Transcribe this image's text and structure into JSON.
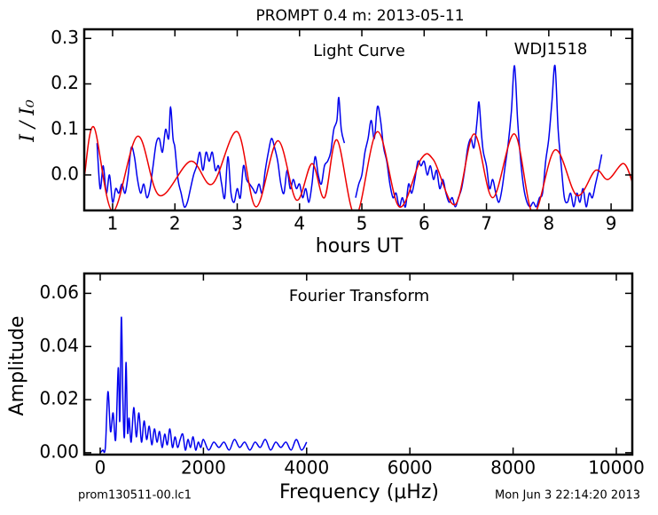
{
  "chart_data": [
    {
      "type": "line",
      "title": "PROMPT 0.4 m:  2013-05-11",
      "annotations": [
        "Light Curve",
        "WDJ1518"
      ],
      "xlabel": "hours UT",
      "ylabel": "I / I₀",
      "xlim": [
        0.545,
        9.34
      ],
      "ylim": [
        -0.078,
        0.32
      ],
      "xticks": [
        1,
        2,
        3,
        4,
        5,
        6,
        7,
        8,
        9
      ],
      "yticks": [
        {
          "value": 0,
          "label": "0.0"
        },
        0.1,
        0.2,
        0.3
      ],
      "series": [
        {
          "color": "#0000ee",
          "x": [
            0.75,
            0.8,
            0.85,
            0.9,
            0.95,
            1.0,
            1.05,
            1.1,
            1.15,
            1.2,
            1.25,
            1.3,
            1.35,
            1.4,
            1.45,
            1.5,
            1.55,
            1.6,
            1.65,
            1.7,
            1.75,
            1.8,
            1.85,
            1.9,
            1.93,
            1.97,
            2.0,
            2.05,
            2.1,
            2.15,
            2.2,
            2.25,
            2.3,
            2.35,
            2.4,
            2.45,
            2.5,
            2.55,
            2.6,
            2.65,
            2.7,
            2.75,
            2.8,
            2.85,
            2.9,
            2.95,
            3.0,
            3.05,
            3.1,
            3.15,
            3.2,
            3.25,
            3.3,
            3.35,
            3.4,
            3.45,
            3.5,
            3.55,
            3.6,
            3.65,
            3.7,
            3.75,
            3.8,
            3.85,
            3.9,
            3.95,
            4.0,
            4.05,
            4.1,
            4.15,
            4.2,
            4.25,
            4.3,
            4.35,
            4.4,
            4.45,
            4.5,
            4.55,
            4.6,
            4.63,
            4.67,
            4.72,
            4.8,
            4.9,
            4.95,
            5.0,
            5.05,
            5.1,
            5.15,
            5.2,
            5.25,
            5.3,
            5.35,
            5.4,
            5.45,
            5.5,
            5.55,
            5.6,
            5.65,
            5.7,
            5.75,
            5.8,
            5.85,
            5.9,
            5.95,
            6.0,
            6.05,
            6.1,
            6.15,
            6.2,
            6.25,
            6.3,
            6.35,
            6.4,
            6.45,
            6.5,
            6.55,
            6.6,
            6.65,
            6.7,
            6.75,
            6.8,
            6.85,
            6.88,
            6.92,
            6.95,
            7.0,
            7.05,
            7.1,
            7.15,
            7.2,
            7.25,
            7.3,
            7.35,
            7.4,
            7.45,
            7.5,
            7.55,
            7.6,
            7.65,
            7.7,
            7.75,
            7.8,
            7.85,
            7.9,
            7.95,
            8.0,
            8.05,
            8.1,
            8.15,
            8.2,
            8.25,
            8.3,
            8.35,
            8.4,
            8.45,
            8.5,
            8.55,
            8.6,
            8.65,
            8.7,
            8.75,
            8.8,
            8.85
          ],
          "values": [
            0.07,
            -0.03,
            0.02,
            -0.04,
            0.0,
            -0.06,
            -0.03,
            -0.04,
            -0.02,
            -0.04,
            0.0,
            0.06,
            0.04,
            -0.01,
            -0.04,
            -0.02,
            -0.05,
            -0.03,
            0.02,
            0.07,
            0.08,
            0.05,
            0.1,
            0.08,
            0.15,
            0.08,
            0.06,
            -0.01,
            -0.04,
            -0.07,
            -0.06,
            -0.03,
            0.0,
            0.02,
            0.05,
            0.01,
            0.05,
            0.03,
            0.05,
            0.01,
            0.02,
            -0.02,
            -0.05,
            0.04,
            -0.04,
            -0.06,
            -0.03,
            -0.05,
            0.02,
            -0.01,
            -0.02,
            -0.03,
            -0.04,
            -0.02,
            -0.04,
            0.01,
            0.05,
            0.08,
            0.06,
            0.03,
            -0.02,
            -0.04,
            0.01,
            -0.03,
            -0.01,
            -0.03,
            -0.02,
            -0.05,
            -0.03,
            -0.06,
            -0.02,
            0.04,
            0.0,
            -0.02,
            0.02,
            0.03,
            0.05,
            0.1,
            0.12,
            0.17,
            0.1,
            0.07,
            null,
            -0.05,
            -0.02,
            0.0,
            0.05,
            0.08,
            0.12,
            0.08,
            0.15,
            0.12,
            0.06,
            0.03,
            -0.02,
            -0.05,
            -0.04,
            -0.07,
            -0.05,
            -0.07,
            -0.02,
            -0.04,
            -0.01,
            0.03,
            0.02,
            0.03,
            0.0,
            0.02,
            -0.01,
            0.01,
            -0.03,
            -0.01,
            -0.04,
            -0.06,
            -0.05,
            -0.07,
            -0.05,
            -0.03,
            0.01,
            0.06,
            0.08,
            0.06,
            0.12,
            0.16,
            0.09,
            0.05,
            0.02,
            -0.03,
            -0.01,
            -0.04,
            -0.06,
            -0.03,
            0.02,
            0.07,
            0.14,
            0.24,
            0.12,
            0.03,
            -0.03,
            -0.06,
            -0.07,
            -0.06,
            -0.07,
            -0.05,
            -0.04,
            0.03,
            0.08,
            0.16,
            0.24,
            0.1,
            0.02,
            -0.05,
            -0.06,
            -0.04,
            -0.07,
            -0.04,
            -0.06,
            -0.03,
            -0.07,
            -0.04,
            -0.05,
            -0.02,
            0.01,
            0.045
          ]
        },
        {
          "color": "#ee0000",
          "x": [
            0.55,
            0.7,
            1.0,
            1.4,
            1.75,
            2.25,
            2.6,
            3.0,
            3.3,
            3.65,
            3.95,
            4.2,
            4.4,
            4.6,
            4.9,
            5.25,
            5.6,
            5.95,
            6.15,
            6.5,
            6.8,
            7.1,
            7.45,
            7.75,
            8.1,
            8.45,
            8.75,
            8.95,
            9.2,
            9.35
          ],
          "values": [
            0.0,
            0.105,
            -0.08,
            0.085,
            -0.045,
            0.03,
            -0.02,
            0.095,
            -0.07,
            0.075,
            -0.055,
            0.025,
            -0.05,
            0.077,
            -0.09,
            0.095,
            -0.07,
            0.035,
            0.033,
            -0.065,
            0.09,
            -0.05,
            0.09,
            -0.085,
            0.055,
            -0.045,
            0.01,
            -0.01,
            0.025,
            -0.02
          ]
        }
      ]
    },
    {
      "type": "line",
      "annotations": [
        "Fourier Transform"
      ],
      "xlabel": "Frequency (μHz)",
      "ylabel": "Amplitude",
      "xlim": [
        -309,
        10309
      ],
      "ylim": [
        -0.0007,
        0.0675
      ],
      "xticks": [
        0,
        2000,
        4000,
        6000,
        8000,
        10000
      ],
      "yticks": [
        {
          "value": 0,
          "label": "0.00"
        },
        0.02,
        0.04,
        0.06
      ],
      "series": [
        {
          "color": "#0000ee",
          "x": [
            0,
            50,
            100,
            150,
            200,
            250,
            300,
            350,
            380,
            410,
            440,
            470,
            500,
            530,
            560,
            600,
            650,
            700,
            750,
            800,
            850,
            900,
            950,
            1000,
            1050,
            1100,
            1150,
            1200,
            1250,
            1300,
            1350,
            1400,
            1450,
            1500,
            1550,
            1600,
            1650,
            1700,
            1750,
            1800,
            1850,
            1900,
            1950,
            2000,
            2100,
            2200,
            2300,
            2400,
            2500,
            2600,
            2700,
            2800,
            2900,
            3000,
            3100,
            3200,
            3300,
            3400,
            3500,
            3600,
            3700,
            3800,
            3900,
            4000
          ],
          "values": [
            0,
            0.001,
            0.002,
            0.023,
            0.008,
            0.015,
            0.005,
            0.032,
            0.012,
            0.051,
            0.02,
            0.006,
            0.034,
            0.008,
            0.013,
            0.004,
            0.017,
            0.006,
            0.015,
            0.004,
            0.012,
            0.005,
            0.01,
            0.003,
            0.009,
            0.004,
            0.008,
            0.002,
            0.007,
            0.003,
            0.009,
            0.002,
            0.006,
            0.002,
            0.005,
            0.007,
            0.001,
            0.005,
            0.002,
            0.006,
            0.001,
            0.004,
            0.002,
            0.005,
            0.001,
            0.004,
            0.002,
            0.004,
            0.001,
            0.005,
            0.002,
            0.004,
            0.001,
            0.004,
            0.002,
            0.005,
            0.001,
            0.004,
            0.002,
            0.004,
            0.001,
            0.005,
            0.001,
            0.004
          ]
        }
      ]
    }
  ],
  "footer": {
    "left": "prom130511-00.lc1",
    "right": "Mon Jun  3 22:14:20 2013"
  }
}
